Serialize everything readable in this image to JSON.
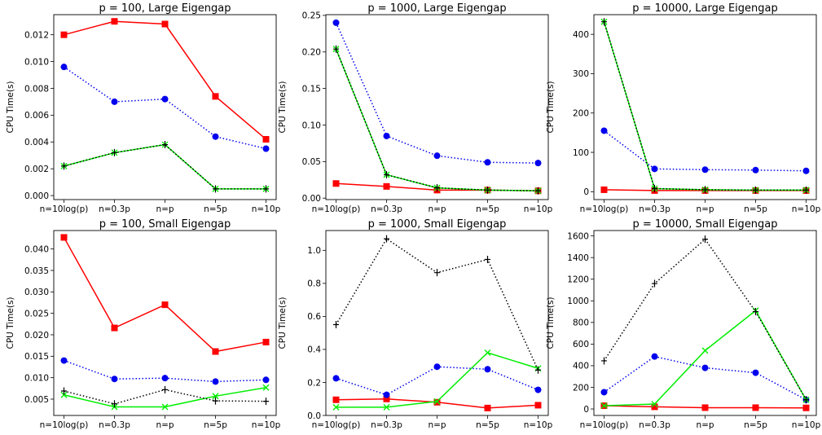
{
  "chart_data": [
    {
      "type": "line",
      "title": "p = 100, Large Eigengap",
      "xlabel": "",
      "ylabel": "CPU Time(s)",
      "categories": [
        "n=10log(p)",
        "n=0.3p",
        "n=p",
        "n=5p",
        "n=10p"
      ],
      "ylim": [
        -0.0003,
        0.0135
      ],
      "yticks": [
        0.0,
        0.002,
        0.004,
        0.006,
        0.008,
        0.01,
        0.012
      ],
      "ytick_labels": [
        "0.000",
        "0.002",
        "0.004",
        "0.006",
        "0.008",
        "0.010",
        "0.012"
      ],
      "series": [
        {
          "color": "#ff0000",
          "linestyle": "solid",
          "marker": "square",
          "values": [
            0.012,
            0.013,
            0.0128,
            0.0074,
            0.0042
          ]
        },
        {
          "color": "#0000ee",
          "linestyle": "dotted",
          "marker": "circle",
          "values": [
            0.0096,
            0.007,
            0.0072,
            0.0044,
            0.0035
          ]
        },
        {
          "color": "#00ee00",
          "linestyle": "solid",
          "marker": "x",
          "values": [
            0.0022,
            0.0032,
            0.0038,
            0.0005,
            0.0005
          ]
        },
        {
          "color": "#000000",
          "linestyle": "dotted",
          "marker": "plus",
          "values": [
            0.0022,
            0.0032,
            0.0038,
            0.0005,
            0.0005
          ]
        }
      ]
    },
    {
      "type": "line",
      "title": "p = 1000, Large Eigengap",
      "xlabel": "",
      "ylabel": "CPU Time(s)",
      "categories": [
        "n=10log(p)",
        "n=0.3p",
        "n=p",
        "n=5p",
        "n=10p"
      ],
      "ylim": [
        -0.002,
        0.251
      ],
      "yticks": [
        0.0,
        0.05,
        0.1,
        0.15,
        0.2,
        0.25
      ],
      "ytick_labels": [
        "0.00",
        "0.05",
        "0.10",
        "0.15",
        "0.20",
        "0.25"
      ],
      "series": [
        {
          "color": "#ff0000",
          "linestyle": "solid",
          "marker": "square",
          "values": [
            0.02,
            0.016,
            0.011,
            0.011,
            0.01
          ]
        },
        {
          "color": "#0000ee",
          "linestyle": "dotted",
          "marker": "circle",
          "values": [
            0.24,
            0.085,
            0.058,
            0.049,
            0.048
          ]
        },
        {
          "color": "#00ee00",
          "linestyle": "solid",
          "marker": "x",
          "values": [
            0.204,
            0.032,
            0.014,
            0.011,
            0.01
          ]
        },
        {
          "color": "#000000",
          "linestyle": "dotted",
          "marker": "plus",
          "values": [
            0.204,
            0.032,
            0.014,
            0.011,
            0.01
          ]
        }
      ]
    },
    {
      "type": "line",
      "title": "p = 10000, Large Eigengap",
      "xlabel": "",
      "ylabel": "CPU Time(s)",
      "categories": [
        "n=10log(p)",
        "n=0.3p",
        "n=p",
        "n=5p",
        "n=10p"
      ],
      "ylim": [
        -20,
        450
      ],
      "yticks": [
        0,
        100,
        200,
        300,
        400
      ],
      "ytick_labels": [
        "0",
        "100",
        "200",
        "300",
        "400"
      ],
      "series": [
        {
          "color": "#ff0000",
          "linestyle": "solid",
          "marker": "square",
          "values": [
            5,
            3,
            3,
            3,
            3
          ]
        },
        {
          "color": "#0000ee",
          "linestyle": "dotted",
          "marker": "circle",
          "values": [
            155,
            58,
            56,
            55,
            53
          ]
        },
        {
          "color": "#00ee00",
          "linestyle": "solid",
          "marker": "x",
          "values": [
            432,
            8,
            5,
            4,
            4
          ]
        },
        {
          "color": "#000000",
          "linestyle": "dotted",
          "marker": "plus",
          "values": [
            432,
            8,
            5,
            4,
            4
          ]
        }
      ]
    },
    {
      "type": "line",
      "title": "p = 100, Small Eigengap",
      "xlabel": "",
      "ylabel": "CPU Time(s)",
      "categories": [
        "n=10log(p)",
        "n=0.3p",
        "n=p",
        "n=5p",
        "n=10p"
      ],
      "ylim": [
        0.0012,
        0.0443
      ],
      "yticks": [
        0.005,
        0.01,
        0.015,
        0.02,
        0.025,
        0.03,
        0.035,
        0.04
      ],
      "ytick_labels": [
        "0.005",
        "0.010",
        "0.015",
        "0.020",
        "0.025",
        "0.030",
        "0.035",
        "0.040"
      ],
      "series": [
        {
          "color": "#ff0000",
          "linestyle": "solid",
          "marker": "square",
          "values": [
            0.0427,
            0.0216,
            0.027,
            0.0161,
            0.0183
          ]
        },
        {
          "color": "#0000ee",
          "linestyle": "dotted",
          "marker": "circle",
          "values": [
            0.014,
            0.0097,
            0.0099,
            0.0091,
            0.0095
          ]
        },
        {
          "color": "#00ee00",
          "linestyle": "solid",
          "marker": "x",
          "values": [
            0.006,
            0.0032,
            0.0032,
            0.0057,
            0.0077
          ]
        },
        {
          "color": "#000000",
          "linestyle": "dotted",
          "marker": "plus",
          "values": [
            0.0069,
            0.0039,
            0.0072,
            0.0046,
            0.0045
          ]
        }
      ]
    },
    {
      "type": "line",
      "title": "p = 1000, Small Eigengap",
      "xlabel": "",
      "ylabel": "CPU Time(s)",
      "categories": [
        "n=10log(p)",
        "n=0.3p",
        "n=p",
        "n=5p",
        "n=10p"
      ],
      "ylim": [
        0,
        1.12
      ],
      "yticks": [
        0.0,
        0.2,
        0.4,
        0.6,
        0.8,
        1.0
      ],
      "ytick_labels": [
        "0.0",
        "0.2",
        "0.4",
        "0.6",
        "0.8",
        "1.0"
      ],
      "series": [
        {
          "color": "#ff0000",
          "linestyle": "solid",
          "marker": "square",
          "values": [
            0.095,
            0.1,
            0.08,
            0.045,
            0.062
          ]
        },
        {
          "color": "#0000ee",
          "linestyle": "dotted",
          "marker": "circle",
          "values": [
            0.225,
            0.125,
            0.295,
            0.28,
            0.155
          ]
        },
        {
          "color": "#00ee00",
          "linestyle": "solid",
          "marker": "x",
          "values": [
            0.05,
            0.05,
            0.085,
            0.38,
            0.285
          ]
        },
        {
          "color": "#000000",
          "linestyle": "dotted",
          "marker": "plus",
          "values": [
            0.55,
            1.07,
            0.865,
            0.945,
            0.275
          ]
        }
      ]
    },
    {
      "type": "line",
      "title": "p = 10000, Small Eigengap",
      "xlabel": "",
      "ylabel": "CPU Time(s)",
      "categories": [
        "n=10log(p)",
        "n=0.3p",
        "n=p",
        "n=5p",
        "n=10p"
      ],
      "ylim": [
        -60,
        1650
      ],
      "yticks": [
        0,
        200,
        400,
        600,
        800,
        1000,
        1200,
        1400,
        1600
      ],
      "ytick_labels": [
        "0",
        "200",
        "400",
        "600",
        "800",
        "1000",
        "1200",
        "1400",
        "1600"
      ],
      "series": [
        {
          "color": "#ff0000",
          "linestyle": "solid",
          "marker": "square",
          "values": [
            30,
            20,
            12,
            12,
            10
          ]
        },
        {
          "color": "#0000ee",
          "linestyle": "dotted",
          "marker": "circle",
          "values": [
            155,
            485,
            380,
            335,
            85
          ]
        },
        {
          "color": "#00ee00",
          "linestyle": "solid",
          "marker": "x",
          "values": [
            30,
            45,
            540,
            910,
            85
          ]
        },
        {
          "color": "#000000",
          "linestyle": "dotted",
          "marker": "plus",
          "values": [
            445,
            1160,
            1570,
            900,
            85
          ]
        }
      ]
    }
  ]
}
